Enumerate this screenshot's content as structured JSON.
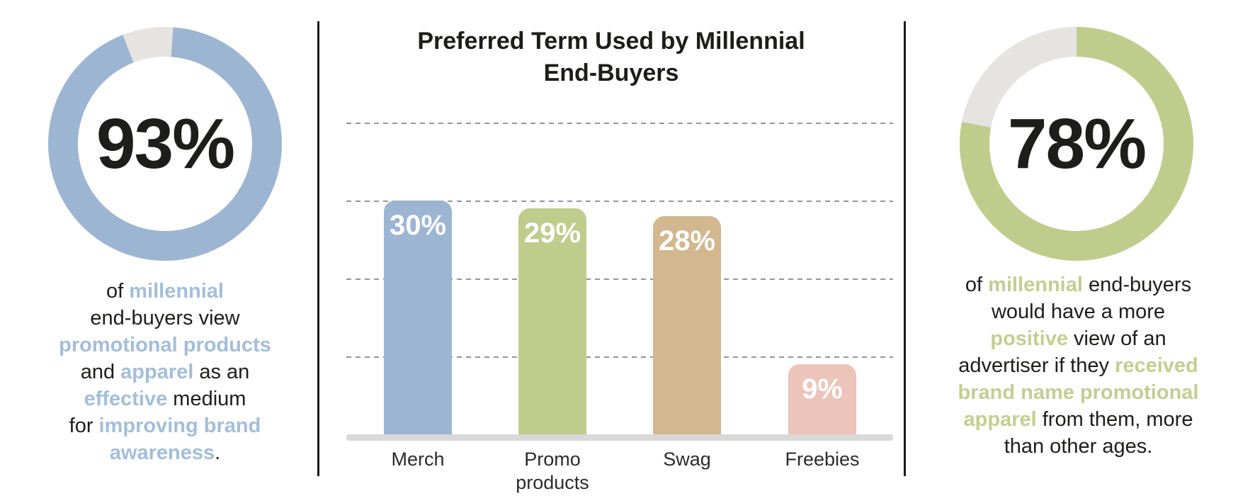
{
  "colors": {
    "blue": "#9cb5d2",
    "green": "#c0cc8c",
    "tan": "#d2b78f",
    "pink": "#ecc4ba",
    "ring_remainder": "#e5e4e0",
    "text_dark": "#1d1d1b",
    "blue_highlight": "#a4bed9",
    "green_highlight": "#c2cf92",
    "gridline": "#969696",
    "baseline": "#d9d9d9"
  },
  "chart_data": [
    {
      "type": "donut",
      "value": 93,
      "label": "93%",
      "unit": "%",
      "start_angle_deg": 4,
      "segments": [
        {
          "name": "agree",
          "value": 93,
          "color": "#9cb5d2"
        },
        {
          "name": "remainder",
          "value": 7,
          "color": "#e5e4e0"
        }
      ],
      "highlight_color": "#a4bed9",
      "caption_plain": "of millennial end-buyers view promotional products and apparel as an effective medium for improving brand awareness.",
      "caption_lines": [
        [
          {
            "t": "of ",
            "b": false
          },
          {
            "t": "millennial",
            "b": true
          }
        ],
        [
          {
            "t": "end-buyers view",
            "b": false
          }
        ],
        [
          {
            "t": "promotional products",
            "b": true
          }
        ],
        [
          {
            "t": "and ",
            "b": false
          },
          {
            "t": "apparel",
            "b": true
          },
          {
            "t": " as an",
            "b": false
          }
        ],
        [
          {
            "t": "effective",
            "b": true
          },
          {
            "t": " medium",
            "b": false
          }
        ],
        [
          {
            "t": "for ",
            "b": false
          },
          {
            "t": "improving brand",
            "b": true
          }
        ],
        [
          {
            "t": "awareness",
            "b": true
          },
          {
            "t": ".",
            "b": false
          }
        ]
      ]
    },
    {
      "type": "bar",
      "title": "Preferred Term Used by Millennial End-Buyers",
      "title_lines": [
        "Preferred Term Used by Millennial",
        "End-Buyers"
      ],
      "categories": [
        "Merch",
        "Promo products",
        "Swag",
        "Freebies"
      ],
      "category_label_lines": [
        [
          "Merch"
        ],
        [
          "Promo",
          "products"
        ],
        [
          "Swag"
        ],
        [
          "Freebies"
        ]
      ],
      "values": [
        30,
        29,
        28,
        9
      ],
      "value_labels": [
        "30%",
        "29%",
        "28%",
        "9%"
      ],
      "bar_colors": [
        "#9cb5d2",
        "#c0cc8c",
        "#d2b78f",
        "#ecc4ba"
      ],
      "unit": "%",
      "ylim": [
        0,
        45
      ],
      "gridlines": [
        10,
        20,
        30,
        40
      ],
      "grid_style": "dashed",
      "legend": "none",
      "xlabel": "",
      "ylabel": ""
    },
    {
      "type": "donut",
      "value": 78,
      "label": "78%",
      "unit": "%",
      "start_angle_deg": 0,
      "segments": [
        {
          "name": "agree",
          "value": 78,
          "color": "#c0cc8c"
        },
        {
          "name": "remainder",
          "value": 22,
          "color": "#e5e4e0"
        }
      ],
      "highlight_color": "#c2cf92",
      "caption_plain": "of millennial end-buyers would have a more positive view of an advertiser if they received brand name promotional apparel from them, more than other ages.",
      "caption_lines": [
        [
          {
            "t": "of ",
            "b": false
          },
          {
            "t": "millennial",
            "b": true
          },
          {
            "t": " end-buyers",
            "b": false
          }
        ],
        [
          {
            "t": "would have a more",
            "b": false
          }
        ],
        [
          {
            "t": "positive",
            "b": true
          },
          {
            "t": " view of an",
            "b": false
          }
        ],
        [
          {
            "t": "advertiser if they ",
            "b": false
          },
          {
            "t": "received",
            "b": true
          }
        ],
        [
          {
            "t": "brand name promotional",
            "b": true
          }
        ],
        [
          {
            "t": "apparel",
            "b": true
          },
          {
            "t": " from them, more",
            "b": false
          }
        ],
        [
          {
            "t": "than other ages.",
            "b": false
          }
        ]
      ]
    }
  ]
}
